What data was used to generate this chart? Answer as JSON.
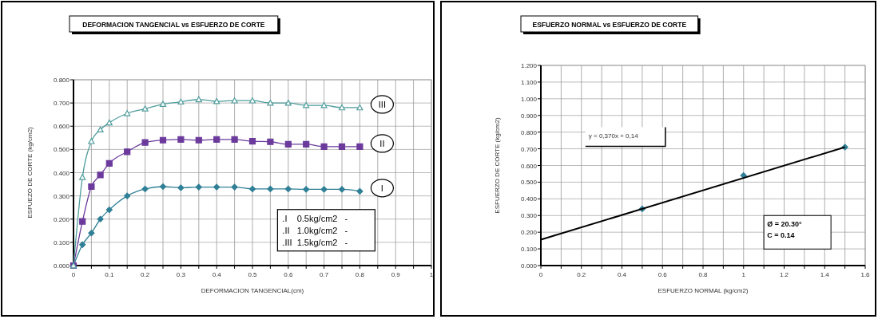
{
  "chart_data": [
    {
      "type": "line",
      "title": "DEFORMACION TANGENCIAL vs ESFUERZO DE CORTE",
      "xlabel": "DEFORMACION TANGENCIAL(cm)",
      "ylabel": "ESFUEZO DE CORTE (kg/cm2)",
      "x": [
        0,
        0.025,
        0.05,
        0.075,
        0.1,
        0.15,
        0.2,
        0.25,
        0.3,
        0.35,
        0.4,
        0.45,
        0.5,
        0.55,
        0.6,
        0.65,
        0.7,
        0.75,
        0.8
      ],
      "series": [
        {
          "name": "I",
          "color": "#2f7f96",
          "marker": "diamond",
          "values": [
            0,
            0.09,
            0.14,
            0.2,
            0.24,
            0.3,
            0.33,
            0.34,
            0.335,
            0.338,
            0.338,
            0.338,
            0.33,
            0.33,
            0.33,
            0.328,
            0.328,
            0.328,
            0.32
          ]
        },
        {
          "name": "II",
          "color": "#6b3a9c",
          "marker": "square",
          "values": [
            0,
            0.19,
            0.34,
            0.39,
            0.44,
            0.49,
            0.53,
            0.54,
            0.543,
            0.54,
            0.543,
            0.543,
            0.535,
            0.533,
            0.522,
            0.522,
            0.512,
            0.512,
            0.512
          ]
        },
        {
          "name": "III",
          "color": "#4f9c9c",
          "marker": "triangle",
          "values": [
            0,
            0.38,
            0.535,
            0.585,
            0.615,
            0.655,
            0.675,
            0.695,
            0.705,
            0.715,
            0.707,
            0.71,
            0.71,
            0.7,
            0.7,
            0.69,
            0.69,
            0.68,
            0.68
          ]
        }
      ],
      "xlim": [
        0,
        1
      ],
      "ylim": [
        0,
        0.8
      ],
      "xticks": [
        {
          "value": 0,
          "label": "0"
        },
        {
          "value": 0.05,
          "label": null
        },
        {
          "value": 0.1,
          "label": "0.1"
        },
        {
          "value": 0.15,
          "label": null
        },
        {
          "value": 0.2,
          "label": "0.2"
        },
        {
          "value": 0.25,
          "label": null
        },
        {
          "value": 0.3,
          "label": "0.3"
        },
        {
          "value": 0.35,
          "label": null
        },
        {
          "value": 0.4,
          "label": "0.4"
        },
        {
          "value": 0.45,
          "label": null
        },
        {
          "value": 0.5,
          "label": "0.5"
        },
        {
          "value": 0.55,
          "label": null
        },
        {
          "value": 0.6,
          "label": "0.6"
        },
        {
          "value": 0.65,
          "label": null
        },
        {
          "value": 0.7,
          "label": "0.7"
        },
        {
          "value": 0.75,
          "label": null
        },
        {
          "value": 0.8,
          "label": "0.8"
        },
        {
          "value": 0.85,
          "label": null
        },
        {
          "value": 0.9,
          "label": "0.9"
        },
        {
          "value": 0.95,
          "label": null
        },
        {
          "value": 1,
          "label": "1"
        }
      ],
      "yticks": [
        {
          "value": 0,
          "label": "0.000"
        },
        {
          "value": 0.1,
          "label": "0.100"
        },
        {
          "value": 0.2,
          "label": "0.200"
        },
        {
          "value": 0.3,
          "label": "0.300"
        },
        {
          "value": 0.4,
          "label": "0.400"
        },
        {
          "value": 0.5,
          "label": "0.500"
        },
        {
          "value": 0.6,
          "label": "0.600"
        },
        {
          "value": 0.7,
          "label": "0.700"
        },
        {
          "value": 0.8,
          "label": "0.800"
        }
      ],
      "grid": true,
      "legend": false,
      "annotations": [
        ".I    0.5kg/cm2   -",
        ".II   1.0kg/cm2   -",
        ".III  1.5kg/cm2   -"
      ]
    },
    {
      "type": "scatter",
      "title": "ESFUERZO NORMAL vs ESFUERZO DE CORTE",
      "xlabel": "ESFUERZO NORMAL (kg/cm2)",
      "ylabel": "ESFUERZO DE CORTE (kg/cm2)",
      "x": [
        0.5,
        1,
        1.5
      ],
      "series": [
        {
          "color": "#2f7f96",
          "marker": "diamond",
          "values": [
            0.34,
            0.54,
            0.71
          ]
        },
        {
          "type": "line",
          "color": "#000000",
          "marker": "none",
          "x": [
            0,
            1.5
          ],
          "values": [
            0.155,
            0.71
          ]
        }
      ],
      "xlim": [
        0,
        1.6
      ],
      "ylim": [
        0,
        1.2
      ],
      "xticks": [
        {
          "value": 0,
          "label": "0"
        },
        {
          "value": 0.1,
          "label": null
        },
        {
          "value": 0.2,
          "label": "0.2"
        },
        {
          "value": 0.3,
          "label": null
        },
        {
          "value": 0.4,
          "label": "0.4"
        },
        {
          "value": 0.5,
          "label": null
        },
        {
          "value": 0.6,
          "label": "0.6"
        },
        {
          "value": 0.7,
          "label": null
        },
        {
          "value": 0.8,
          "label": "0.8"
        },
        {
          "value": 0.9,
          "label": null
        },
        {
          "value": 1,
          "label": "1"
        },
        {
          "value": 1.1,
          "label": null
        },
        {
          "value": 1.2,
          "label": "1.2"
        },
        {
          "value": 1.3,
          "label": null
        },
        {
          "value": 1.4,
          "label": "1.4"
        },
        {
          "value": 1.5,
          "label": null
        },
        {
          "value": 1.6,
          "label": "1.6"
        }
      ],
      "yticks": [
        {
          "value": 0,
          "label": "0.000"
        },
        {
          "value": 0.1,
          "label": "0.100"
        },
        {
          "value": 0.2,
          "label": "0.200"
        },
        {
          "value": 0.3,
          "label": "0.300"
        },
        {
          "value": 0.4,
          "label": "0.400"
        },
        {
          "value": 0.5,
          "label": "0.500"
        },
        {
          "value": 0.6,
          "label": "0.600"
        },
        {
          "value": 0.7,
          "label": "0.700"
        },
        {
          "value": 0.8,
          "label": "0.800"
        },
        {
          "value": 0.9,
          "label": "0.900"
        },
        {
          "value": 1,
          "label": "1.000"
        },
        {
          "value": 1.1,
          "label": "1.100"
        },
        {
          "value": 1.2,
          "label": "1.200"
        }
      ],
      "grid": true,
      "legend": false,
      "annotations": [
        "y = 0,370x + 0,14",
        "Ø = 20.30°",
        "C = 0.14"
      ]
    }
  ]
}
